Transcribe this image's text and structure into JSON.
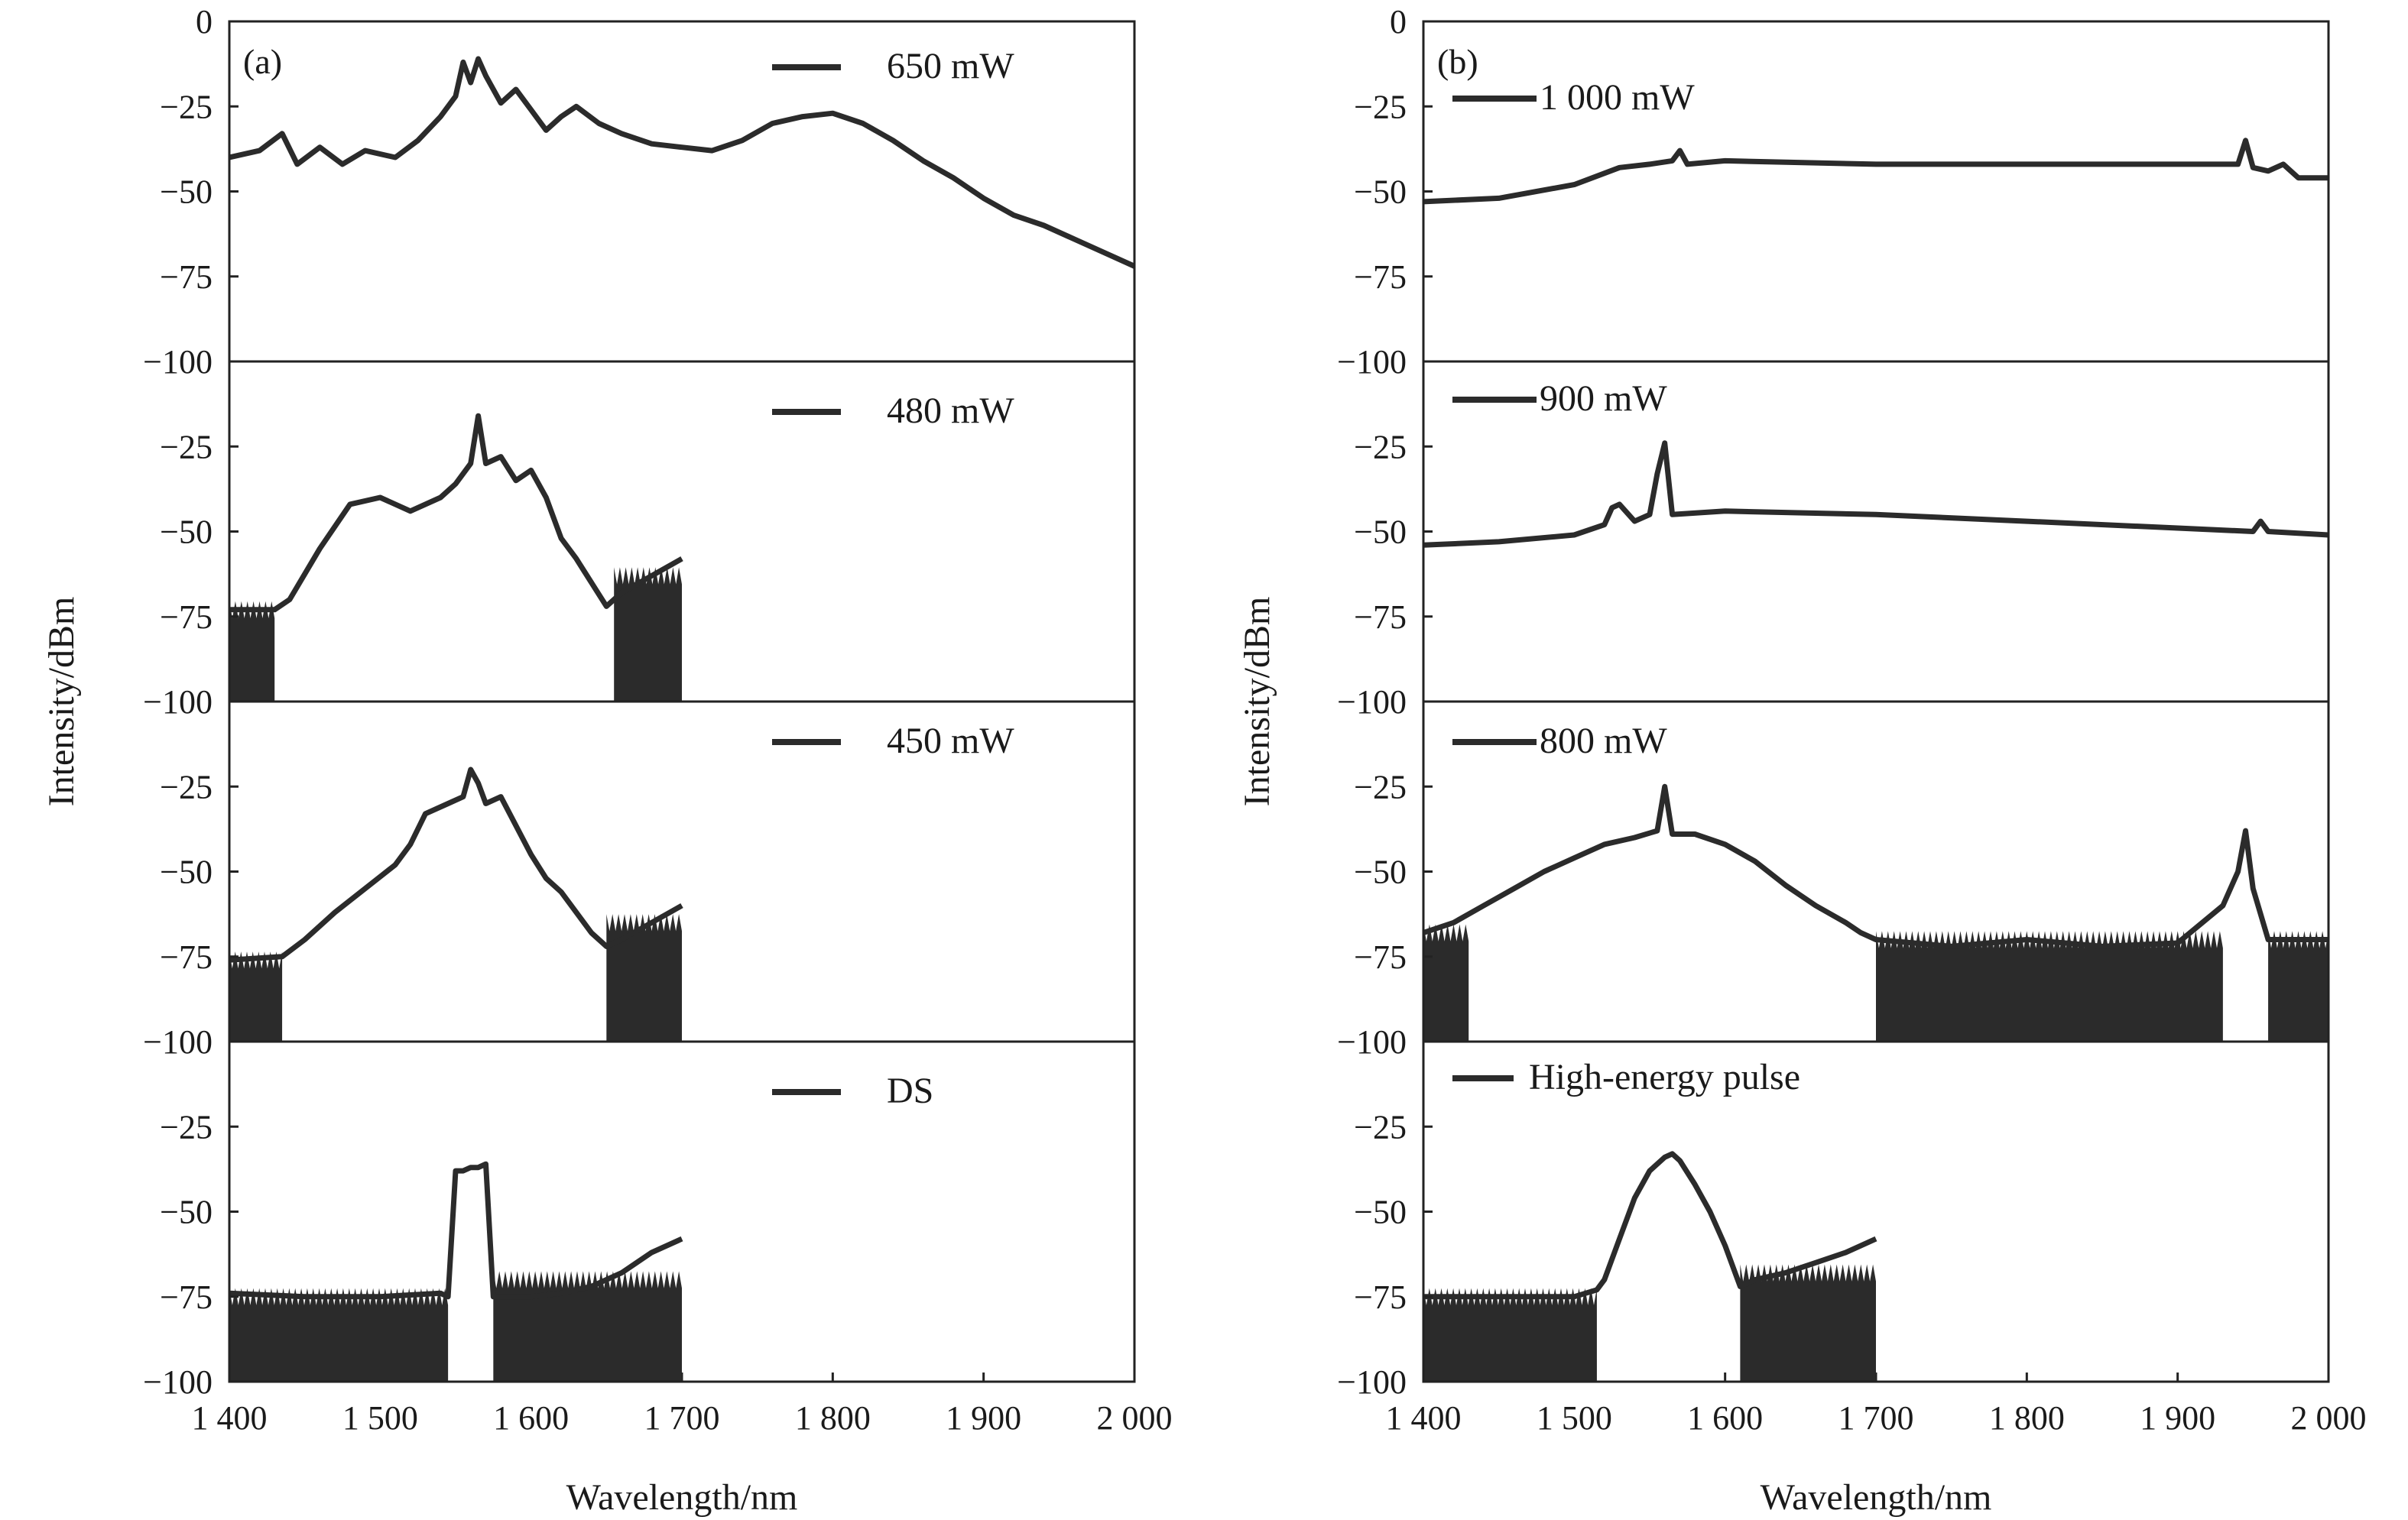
{
  "chart_data": [
    {
      "type": "line",
      "panel_label": "(a)",
      "xlabel": "Wavelength/nm",
      "ylabel": "Intensity/dBm",
      "xlim": [
        1400,
        2000
      ],
      "ylim": [
        -100,
        0
      ],
      "xticks": [
        "1 400",
        "1 500",
        "1 600",
        "1 700",
        "1 800",
        "1 900",
        "2 000"
      ],
      "yticks": [
        "0",
        "−25",
        "−50",
        "−75",
        "−100"
      ],
      "grid": false,
      "legend_position": "top-right",
      "subplots": [
        {
          "legend": "650 mW",
          "series": [
            {
              "name": "650 mW",
              "x": [
                1400,
                1420,
                1435,
                1445,
                1460,
                1475,
                1490,
                1510,
                1525,
                1540,
                1550,
                1555,
                1560,
                1565,
                1570,
                1580,
                1590,
                1600,
                1610,
                1620,
                1630,
                1645,
                1660,
                1680,
                1700,
                1720,
                1740,
                1760,
                1780,
                1800,
                1820,
                1840,
                1860,
                1880,
                1900,
                1920,
                1940,
                1960,
                1980,
                2000
              ],
              "y": [
                -40,
                -38,
                -33,
                -42,
                -37,
                -42,
                -38,
                -40,
                -35,
                -28,
                -22,
                -12,
                -18,
                -11,
                -16,
                -24,
                -20,
                -26,
                -32,
                -28,
                -25,
                -30,
                -33,
                -36,
                -37,
                -38,
                -35,
                -30,
                -28,
                -27,
                -30,
                -35,
                -41,
                -46,
                -52,
                -57,
                -60,
                -64,
                -68,
                -72
              ]
            }
          ]
        },
        {
          "legend": "480 mW",
          "series": [
            {
              "name": "480 mW",
              "x": [
                1400,
                1430,
                1440,
                1460,
                1480,
                1500,
                1520,
                1540,
                1550,
                1560,
                1565,
                1570,
                1580,
                1590,
                1600,
                1610,
                1620,
                1630,
                1640,
                1650,
                1660,
                1680,
                1700
              ],
              "y": [
                -73,
                -73,
                -70,
                -55,
                -42,
                -40,
                -44,
                -40,
                -36,
                -30,
                -16,
                -30,
                -28,
                -35,
                -32,
                -40,
                -52,
                -58,
                -65,
                -72,
                -68,
                -63,
                -58
              ],
              "noise_floor_segments": [
                [
                  1400,
                  1430,
                  -73
                ],
                [
                  1655,
                  1700,
                  -63
                ]
              ]
            }
          ]
        },
        {
          "legend": "450 mW",
          "series": [
            {
              "name": "450 mW",
              "x": [
                1400,
                1435,
                1450,
                1470,
                1490,
                1510,
                1520,
                1530,
                1545,
                1555,
                1560,
                1565,
                1570,
                1580,
                1600,
                1610,
                1620,
                1630,
                1640,
                1650,
                1660,
                1680,
                1700
              ],
              "y": [
                -76,
                -75,
                -70,
                -62,
                -55,
                -48,
                -42,
                -33,
                -30,
                -28,
                -20,
                -24,
                -30,
                -28,
                -45,
                -52,
                -56,
                -62,
                -68,
                -72,
                -70,
                -65,
                -60
              ],
              "noise_floor_segments": [
                [
                  1400,
                  1435,
                  -76
                ],
                [
                  1650,
                  1700,
                  -65
                ]
              ]
            }
          ]
        },
        {
          "legend": "DS",
          "series": [
            {
              "name": "DS",
              "x": [
                1400,
                1450,
                1500,
                1540,
                1545,
                1550,
                1555,
                1560,
                1565,
                1570,
                1575,
                1600,
                1620,
                1640,
                1660,
                1680,
                1700
              ],
              "y": [
                -74,
                -75,
                -75,
                -74,
                -75,
                -38,
                -38,
                -37,
                -37,
                -36,
                -75,
                -75,
                -74,
                -72,
                -68,
                -62,
                -58
              ],
              "noise_floor_segments": [
                [
                  1400,
                  1545,
                  -75
                ],
                [
                  1575,
                  1700,
                  -70
                ]
              ]
            }
          ]
        }
      ]
    },
    {
      "type": "line",
      "panel_label": "(b)",
      "xlabel": "Wavelength/nm",
      "ylabel": "Intensity/dBm",
      "xlim": [
        1400,
        2000
      ],
      "ylim": [
        -100,
        0
      ],
      "xticks": [
        "1 400",
        "1 500",
        "1 600",
        "1 700",
        "1 800",
        "1 900",
        "2 000"
      ],
      "yticks": [
        "0",
        "−25",
        "−50",
        "−75",
        "−100"
      ],
      "grid": false,
      "legend_position": "top-left",
      "subplots": [
        {
          "legend": "1 000 mW",
          "series": [
            {
              "name": "1 000 mW",
              "x": [
                1400,
                1450,
                1500,
                1530,
                1550,
                1565,
                1570,
                1575,
                1600,
                1700,
                1800,
                1900,
                1940,
                1945,
                1950,
                1960,
                1970,
                1980,
                2000
              ],
              "y": [
                -53,
                -52,
                -48,
                -43,
                -42,
                -41,
                -38,
                -42,
                -41,
                -42,
                -42,
                -42,
                -42,
                -35,
                -43,
                -44,
                -42,
                -46,
                -46
              ]
            }
          ]
        },
        {
          "legend": "900 mW",
          "series": [
            {
              "name": "900 mW",
              "x": [
                1400,
                1450,
                1500,
                1520,
                1525,
                1530,
                1540,
                1550,
                1555,
                1560,
                1565,
                1600,
                1700,
                1800,
                1900,
                1950,
                1955,
                1960,
                2000
              ],
              "y": [
                -54,
                -53,
                -51,
                -48,
                -43,
                -42,
                -47,
                -45,
                -33,
                -24,
                -45,
                -44,
                -45,
                -47,
                -49,
                -50,
                -47,
                -50,
                -51
              ]
            }
          ]
        },
        {
          "legend": "800 mW",
          "series": [
            {
              "name": "800 mW",
              "x": [
                1400,
                1420,
                1440,
                1460,
                1480,
                1500,
                1520,
                1540,
                1555,
                1560,
                1565,
                1580,
                1600,
                1620,
                1640,
                1660,
                1680,
                1690,
                1700,
                1750,
                1800,
                1850,
                1900,
                1930,
                1940,
                1945,
                1950,
                1960,
                2000
              ],
              "y": [
                -68,
                -65,
                -60,
                -55,
                -50,
                -46,
                -42,
                -40,
                -38,
                -25,
                -39,
                -39,
                -42,
                -47,
                -54,
                -60,
                -65,
                -68,
                -70,
                -72,
                -70,
                -72,
                -71,
                -60,
                -50,
                -38,
                -55,
                -70,
                -70
              ],
              "noise_floor_segments": [
                [
                  1400,
                  1430,
                  -68
                ],
                [
                  1700,
                  1930,
                  -70
                ],
                [
                  1960,
                  2000,
                  -70
                ]
              ]
            }
          ]
        },
        {
          "legend": "High-energy pulse",
          "series": [
            {
              "name": "High-energy pulse",
              "x": [
                1400,
                1450,
                1500,
                1515,
                1520,
                1530,
                1540,
                1550,
                1560,
                1565,
                1570,
                1580,
                1590,
                1600,
                1610,
                1620,
                1640,
                1660,
                1680,
                1700
              ],
              "y": [
                -75,
                -75,
                -75,
                -73,
                -70,
                -58,
                -46,
                -38,
                -34,
                -33,
                -35,
                -42,
                -50,
                -60,
                -72,
                -70,
                -68,
                -65,
                -62,
                -58
              ],
              "noise_floor_segments": [
                [
                  1400,
                  1515,
                  -75
                ],
                [
                  1610,
                  1700,
                  -68
                ]
              ]
            }
          ]
        }
      ]
    }
  ]
}
